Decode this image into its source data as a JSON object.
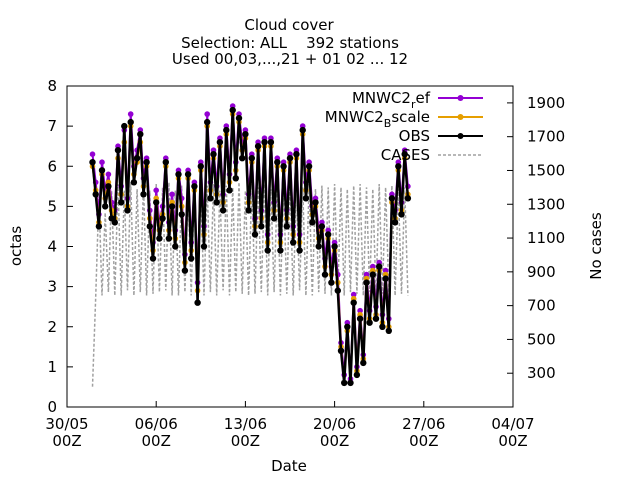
{
  "chart_data": {
    "type": "line",
    "title": "Cloud cover",
    "subtitle_lines": [
      "Selection: ALL    392 stations",
      "Used 00,03,...,21 + 01 02 ... 12"
    ],
    "xlabel": "Date",
    "ylabel": "octas",
    "y2label": "No cases",
    "xlim": [
      "2023-05-30 00:00",
      "2023-07-04 00:00"
    ],
    "ylim": [
      0,
      8
    ],
    "y2lim": [
      100,
      2000
    ],
    "x_ticks": [
      {
        "line1": "30/05",
        "line2": "00Z"
      },
      {
        "line1": "06/06",
        "line2": "00Z"
      },
      {
        "line1": "13/06",
        "line2": "00Z"
      },
      {
        "line1": "20/06",
        "line2": "00Z"
      },
      {
        "line1": "27/06",
        "line2": "00Z"
      },
      {
        "line1": "04/07",
        "line2": "00Z"
      }
    ],
    "y_ticks": [
      "0",
      "1",
      "2",
      "3",
      "4",
      "5",
      "6",
      "7",
      "8"
    ],
    "y2_ticks": [
      "300",
      "500",
      "700",
      "900",
      "1100",
      "1300",
      "1500",
      "1700",
      "1900"
    ],
    "legend_position": "top-right",
    "series": [
      {
        "name": "MNWC2_ref",
        "label_main": "MNWC2",
        "label_sub": "r",
        "label_rest": "ef",
        "axis": "y",
        "color": "#9400d3",
        "marker": "filled-circle",
        "x_start": "2023-06-01 00:00",
        "step_hours": 6,
        "values": [
          6.3,
          5.6,
          4.8,
          6.1,
          5.4,
          5.8,
          5.1,
          4.9,
          6.5,
          5.5,
          6.9,
          5.2,
          7.3,
          6.0,
          6.4,
          6.9,
          5.7,
          6.2,
          4.9,
          4.1,
          5.4,
          4.6,
          5.0,
          6.2,
          4.6,
          5.3,
          4.4,
          5.9,
          5.2,
          3.8,
          5.9,
          4.1,
          5.6,
          3.1,
          6.1,
          4.5,
          7.3,
          5.6,
          6.4,
          5.5,
          6.7,
          5.3,
          7.0,
          5.8,
          7.5,
          6.1,
          7.3,
          6.6,
          6.9,
          5.3,
          6.3,
          4.7,
          6.6,
          4.9,
          6.7,
          4.3,
          6.7,
          5.1,
          6.2,
          4.3,
          6.1,
          4.9,
          6.3,
          4.5,
          6.4,
          4.3,
          7.0,
          5.6,
          6.1,
          5.0,
          5.2,
          4.4,
          4.6,
          3.7,
          4.4,
          3.5,
          4.1,
          3.3,
          1.6,
          0.8,
          2.1,
          0.7,
          2.8,
          1.0,
          2.4,
          1.3,
          3.3,
          2.4,
          3.5,
          2.5,
          3.6,
          2.3,
          3.4,
          2.2,
          5.3,
          4.9,
          6.1,
          5.1,
          6.4,
          5.5
        ]
      },
      {
        "name": "MNWC2_Bscale",
        "label_main": "MNWC2",
        "label_sub": "B",
        "label_rest": "scale",
        "axis": "y",
        "color": "#e69f00",
        "marker": "filled-circle",
        "x_start": "2023-06-01 00:00",
        "step_hours": 6,
        "values": [
          6.0,
          5.4,
          4.6,
          5.8,
          5.2,
          5.6,
          4.9,
          4.7,
          6.2,
          5.3,
          6.6,
          5.0,
          7.0,
          5.8,
          6.1,
          6.6,
          5.5,
          6.0,
          4.7,
          3.9,
          5.2,
          4.4,
          4.8,
          6.0,
          4.4,
          5.1,
          4.2,
          5.7,
          5.0,
          3.6,
          5.7,
          3.9,
          5.4,
          2.9,
          5.9,
          4.3,
          7.0,
          5.4,
          6.2,
          5.3,
          6.5,
          5.1,
          6.8,
          5.6,
          7.3,
          5.9,
          7.1,
          6.4,
          6.7,
          5.1,
          6.1,
          4.5,
          6.4,
          4.7,
          6.5,
          4.1,
          6.5,
          4.9,
          6.0,
          4.1,
          5.9,
          4.7,
          6.1,
          4.3,
          6.2,
          4.1,
          6.8,
          5.4,
          5.9,
          4.8,
          5.0,
          4.2,
          4.4,
          3.5,
          4.2,
          3.3,
          3.9,
          3.1,
          1.5,
          0.6,
          1.9,
          0.6,
          2.7,
          0.9,
          2.3,
          1.2,
          3.2,
          2.2,
          3.4,
          2.3,
          3.4,
          2.1,
          3.3,
          2.0,
          5.1,
          4.7,
          5.9,
          4.9,
          6.2,
          5.3
        ]
      },
      {
        "name": "OBS",
        "label_main": "OBS",
        "label_sub": "",
        "label_rest": "",
        "axis": "y",
        "color": "#000000",
        "marker": "filled-circle",
        "x_start": "2023-06-01 00:00",
        "step_hours": 6,
        "values": [
          6.1,
          5.3,
          4.5,
          5.9,
          5.0,
          5.5,
          4.7,
          4.6,
          6.4,
          5.1,
          7.0,
          4.9,
          7.1,
          5.6,
          6.2,
          6.8,
          5.3,
          6.1,
          4.5,
          3.7,
          5.1,
          4.2,
          4.7,
          6.1,
          4.2,
          5.0,
          4.0,
          5.8,
          4.8,
          3.4,
          5.8,
          3.7,
          5.5,
          2.6,
          6.0,
          4.0,
          7.1,
          5.2,
          6.3,
          5.1,
          6.6,
          4.9,
          6.9,
          5.4,
          7.4,
          5.7,
          7.2,
          6.2,
          6.8,
          4.9,
          6.2,
          4.3,
          6.5,
          4.5,
          6.6,
          3.9,
          6.6,
          4.7,
          6.1,
          3.9,
          6.0,
          4.5,
          6.2,
          4.1,
          6.3,
          3.9,
          6.9,
          5.2,
          6.0,
          4.6,
          5.1,
          4.0,
          4.5,
          3.3,
          4.3,
          3.1,
          4.0,
          2.9,
          1.4,
          0.6,
          2.0,
          0.6,
          2.6,
          0.8,
          2.2,
          1.1,
          3.1,
          2.1,
          3.3,
          2.2,
          3.5,
          2.0,
          3.2,
          1.9,
          5.2,
          4.6,
          6.0,
          4.8,
          6.3,
          5.2
        ]
      },
      {
        "name": "CASES",
        "label_main": "CASES",
        "label_sub": "",
        "label_rest": "",
        "axis": "y2",
        "color": "#a0a0a0",
        "marker": "dashed",
        "x_start": "2023-06-01 00:00",
        "step_hours": 6,
        "values": [
          220,
          750,
          1350,
          760,
          1250,
          780,
          1380,
          760,
          1420,
          760,
          1380,
          790,
          1430,
          760,
          1390,
          780,
          1420,
          760,
          1380,
          770,
          1420,
          780,
          1400,
          790,
          1430,
          760,
          1380,
          760,
          1410,
          780,
          1400,
          760,
          1420,
          770,
          1380,
          760,
          1410,
          780,
          1420,
          760,
          1380,
          790,
          1410,
          760,
          1400,
          780,
          1430,
          770,
          1380,
          760,
          1420,
          770,
          1400,
          780,
          1420,
          760,
          1390,
          780,
          1410,
          760,
          1400,
          770,
          1420,
          760,
          1380,
          790,
          1400,
          760,
          1420,
          760,
          1390,
          780,
          1410,
          770,
          1400,
          760,
          1420,
          780,
          1400,
          760,
          1390,
          780,
          1410,
          770,
          1420,
          760,
          1400,
          780,
          1390,
          760,
          1420,
          770,
          1400,
          780,
          1410,
          760,
          1390,
          770,
          1400,
          760
        ]
      }
    ]
  }
}
